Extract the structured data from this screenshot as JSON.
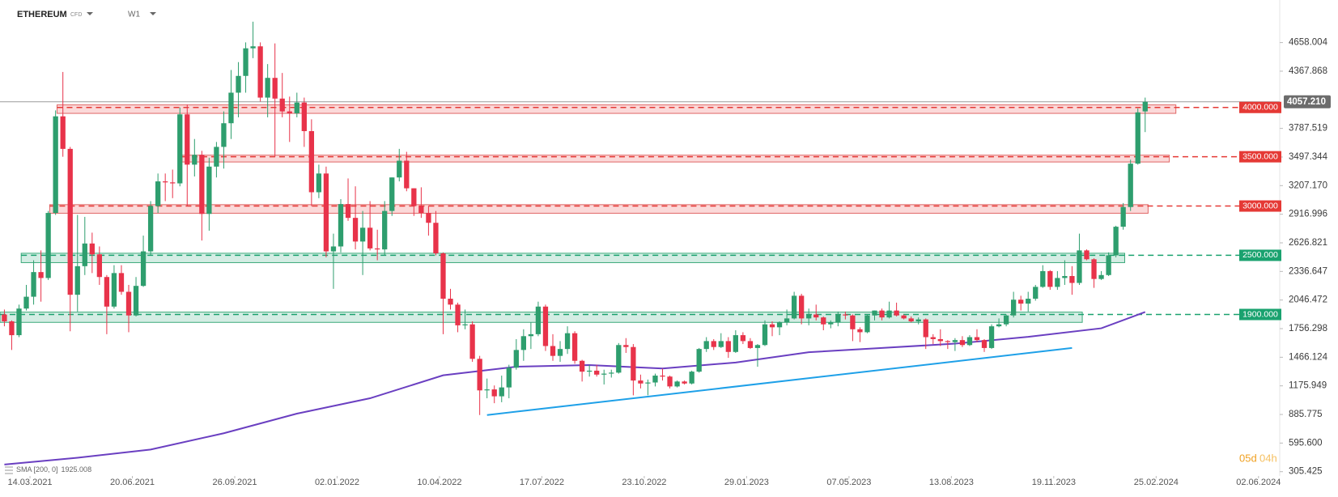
{
  "header": {
    "symbol": "ETHEREUM",
    "type": "CFD",
    "interval": "W1"
  },
  "timer": {
    "days": "05d",
    "hours": "04h"
  },
  "chart_data": {
    "type": "candlestick",
    "ylim": [
      262,
      5090
    ],
    "xlim": [
      -0.6,
      174.4
    ],
    "yticks": [
      4658.004,
      4367.868,
      3787.519,
      3497.344,
      {
        "value": 3207.17,
        "label": "3207.170"
      },
      2916.996,
      2626.821,
      2336.647,
      2046.472,
      1756.298,
      1466.124,
      1175.949,
      885.775,
      {
        "value": 595.6,
        "label": "595.600"
      },
      305.425
    ],
    "xticks": [
      {
        "value": 3.5,
        "label": "14.03.2021"
      },
      {
        "value": 17.5,
        "label": "20.06.2021"
      },
      {
        "value": 31.5,
        "label": "26.09.2021"
      },
      {
        "value": 45.5,
        "label": "02.01.2022"
      },
      {
        "value": 59.5,
        "label": "10.04.2022"
      },
      {
        "value": 73.5,
        "label": "17.07.2022"
      },
      {
        "value": 87.5,
        "label": "23.10.2022"
      },
      {
        "value": 101.5,
        "label": "29.01.2023"
      },
      {
        "value": 115.5,
        "label": "07.05.2023"
      },
      {
        "value": 129.5,
        "label": "13.08.2023"
      },
      {
        "value": 143.5,
        "label": "19.11.2023"
      },
      {
        "value": 157.5,
        "label": "25.02.2024"
      },
      {
        "value": 171.5,
        "label": "02.06.2024"
      }
    ],
    "up_color": "#2e9e6e",
    "down_color": "#e8334a",
    "last_price": {
      "value": 4057.21,
      "label": "4057.210"
    },
    "levels": [
      {
        "value": 4000,
        "label": "4000.000",
        "color": "#e53935",
        "zone": [
          3940,
          4026
        ],
        "start": 7.2,
        "end": 160.2
      },
      {
        "value": 3500,
        "label": "3500.000",
        "color": "#e53935",
        "zone": [
          3447,
          3516
        ],
        "start": 24.3,
        "end": 159.3
      },
      {
        "value": 3000,
        "label": "3000.000",
        "color": "#e53935",
        "zone": [
          2927,
          3014
        ],
        "start": 6.2,
        "end": 156.4
      },
      {
        "value": 2500,
        "label": "2500.000",
        "color": "#1aa26f",
        "zone": [
          2426,
          2521
        ],
        "start": 2.3,
        "end": 153.2
      },
      {
        "value": 1900,
        "label": "1900.000",
        "color": "#1aa26f",
        "zone": [
          1820,
          1924
        ],
        "start": -0.6,
        "end": 147.4
      }
    ],
    "sma": {
      "label": "SMA [200, 0]",
      "value": 1925.008,
      "color": "#6a3fc1",
      "x": [
        0,
        10,
        20,
        30,
        40,
        50,
        60,
        70,
        80,
        90,
        100,
        110,
        120,
        130,
        140,
        150,
        156
      ],
      "values": [
        378,
        447,
        530,
        695,
        894,
        1050,
        1283,
        1370,
        1387,
        1352,
        1413,
        1517,
        1560,
        1604,
        1673,
        1760,
        1925.008
      ]
    },
    "trendline": {
      "color": "#1ea0e8",
      "x": [
        66,
        146
      ],
      "values": [
        880,
        1560
      ]
    },
    "candles": [
      [
        1900,
        1950,
        1780,
        1830
      ],
      [
        1830,
        1840,
        1540,
        1690
      ],
      [
        1690,
        2000,
        1670,
        1960
      ],
      [
        1960,
        2200,
        1940,
        2080
      ],
      [
        2080,
        2450,
        2000,
        2330
      ],
      [
        2330,
        2550,
        2030,
        2270
      ],
      [
        2270,
        2950,
        2250,
        2930
      ],
      [
        2930,
        3970,
        2910,
        3910
      ],
      [
        3910,
        4360,
        3500,
        3580
      ],
      [
        3580,
        3600,
        1730,
        2100
      ],
      [
        2100,
        2910,
        1930,
        2390
      ],
      [
        2390,
        2890,
        2300,
        2620
      ],
      [
        2620,
        2730,
        2320,
        2510
      ],
      [
        2510,
        2590,
        2200,
        2280
      ],
      [
        2280,
        2300,
        1700,
        1980
      ],
      [
        1980,
        2400,
        1960,
        2320
      ],
      [
        2320,
        2400,
        2100,
        2130
      ],
      [
        2130,
        2200,
        1720,
        1890
      ],
      [
        1890,
        2280,
        1880,
        2190
      ],
      [
        2190,
        2700,
        2180,
        2540
      ],
      [
        2540,
        3050,
        2500,
        3000
      ],
      [
        3000,
        3330,
        2930,
        3250
      ],
      [
        3250,
        3330,
        3050,
        3240
      ],
      [
        3240,
        3370,
        3080,
        3230
      ],
      [
        3230,
        4000,
        3200,
        3930
      ],
      [
        3930,
        4030,
        3000,
        3420
      ],
      [
        3420,
        3680,
        3300,
        3520
      ],
      [
        3520,
        3560,
        2650,
        2920
      ],
      [
        2920,
        3490,
        2750,
        3400
      ],
      [
        3400,
        3650,
        3290,
        3600
      ],
      [
        3600,
        3960,
        3380,
        3840
      ],
      [
        3840,
        4380,
        3680,
        4150
      ],
      [
        4150,
        4460,
        3900,
        4320
      ],
      [
        4320,
        4660,
        4150,
        4600
      ],
      [
        4600,
        4870,
        4500,
        4620
      ],
      [
        4620,
        4660,
        4060,
        4100
      ],
      [
        4100,
        4440,
        3900,
        4300
      ],
      [
        4300,
        4650,
        3500,
        4090
      ],
      [
        4090,
        4350,
        3900,
        3960
      ],
      [
        3960,
        4110,
        3650,
        3940
      ],
      [
        3940,
        4150,
        3900,
        4050
      ],
      [
        4050,
        4100,
        3600,
        3760
      ],
      [
        3760,
        3880,
        3000,
        3140
      ],
      [
        3140,
        3420,
        3080,
        3330
      ],
      [
        3330,
        3400,
        2480,
        2540
      ],
      [
        2540,
        2720,
        2160,
        2590
      ],
      [
        2590,
        3070,
        2530,
        3020
      ],
      [
        3020,
        3280,
        2850,
        2880
      ],
      [
        2880,
        3200,
        2560,
        2640
      ],
      [
        2640,
        2950,
        2300,
        2780
      ],
      [
        2780,
        3050,
        2550,
        2570
      ],
      [
        2570,
        2760,
        2450,
        2560
      ],
      [
        2560,
        3050,
        2500,
        2950
      ],
      [
        2950,
        3290,
        2900,
        3290
      ],
      [
        3290,
        3580,
        3250,
        3460
      ],
      [
        3460,
        3550,
        3150,
        3180
      ],
      [
        3180,
        3180,
        2900,
        3000
      ],
      [
        3000,
        3190,
        2880,
        2930
      ],
      [
        2930,
        3000,
        2700,
        2830
      ],
      [
        2830,
        2950,
        2500,
        2520
      ],
      [
        2520,
        2530,
        1700,
        2060
      ],
      [
        2060,
        2160,
        1950,
        2000
      ],
      [
        2000,
        2020,
        1720,
        1790
      ],
      [
        1790,
        1950,
        1750,
        1800
      ],
      [
        1800,
        1830,
        1420,
        1450
      ],
      [
        1450,
        1480,
        880,
        1130
      ],
      [
        1130,
        1250,
        1050,
        1140
      ],
      [
        1140,
        1180,
        1000,
        1070
      ],
      [
        1070,
        1280,
        1010,
        1160
      ],
      [
        1160,
        1390,
        1050,
        1360
      ],
      [
        1360,
        1650,
        1340,
        1540
      ],
      [
        1540,
        1750,
        1430,
        1680
      ],
      [
        1680,
        1820,
        1550,
        1700
      ],
      [
        1700,
        2030,
        1680,
        1980
      ],
      [
        1980,
        2000,
        1530,
        1580
      ],
      [
        1580,
        1700,
        1430,
        1480
      ],
      [
        1480,
        1630,
        1420,
        1550
      ],
      [
        1550,
        1780,
        1500,
        1710
      ],
      [
        1710,
        1730,
        1400,
        1430
      ],
      [
        1430,
        1440,
        1220,
        1320
      ],
      [
        1320,
        1390,
        1270,
        1330
      ],
      [
        1330,
        1390,
        1270,
        1290
      ],
      [
        1290,
        1340,
        1190,
        1300
      ],
      [
        1300,
        1340,
        1260,
        1310
      ],
      [
        1310,
        1610,
        1300,
        1590
      ],
      [
        1590,
        1660,
        1510,
        1570
      ],
      [
        1570,
        1600,
        1080,
        1230
      ],
      [
        1230,
        1290,
        1150,
        1200
      ],
      [
        1200,
        1240,
        1080,
        1210
      ],
      [
        1210,
        1300,
        1170,
        1280
      ],
      [
        1280,
        1350,
        1230,
        1270
      ],
      [
        1270,
        1280,
        1150,
        1170
      ],
      [
        1170,
        1230,
        1160,
        1220
      ],
      [
        1220,
        1230,
        1190,
        1200
      ],
      [
        1200,
        1330,
        1190,
        1320
      ],
      [
        1320,
        1560,
        1310,
        1550
      ],
      [
        1550,
        1670,
        1520,
        1630
      ],
      [
        1630,
        1650,
        1540,
        1570
      ],
      [
        1570,
        1710,
        1560,
        1630
      ],
      [
        1630,
        1670,
        1460,
        1520
      ],
      [
        1520,
        1740,
        1510,
        1690
      ],
      [
        1690,
        1720,
        1600,
        1630
      ],
      [
        1630,
        1660,
        1550,
        1560
      ],
      [
        1560,
        1600,
        1370,
        1590
      ],
      [
        1590,
        1840,
        1580,
        1800
      ],
      [
        1800,
        1830,
        1680,
        1770
      ],
      [
        1770,
        1830,
        1690,
        1820
      ],
      [
        1820,
        1950,
        1790,
        1860
      ],
      [
        1860,
        2130,
        1850,
        2090
      ],
      [
        2090,
        2110,
        1800,
        1860
      ],
      [
        1860,
        1960,
        1790,
        1900
      ],
      [
        1900,
        2000,
        1840,
        1870
      ],
      [
        1870,
        1880,
        1740,
        1800
      ],
      [
        1800,
        1840,
        1760,
        1820
      ],
      [
        1820,
        1930,
        1780,
        1900
      ],
      [
        1900,
        1930,
        1850,
        1890
      ],
      [
        1890,
        1900,
        1630,
        1750
      ],
      [
        1750,
        1770,
        1620,
        1720
      ],
      [
        1720,
        1900,
        1710,
        1890
      ],
      [
        1890,
        1940,
        1840,
        1940
      ],
      [
        1940,
        1960,
        1840,
        1870
      ],
      [
        1870,
        2030,
        1860,
        1940
      ],
      [
        1940,
        2020,
        1880,
        1890
      ],
      [
        1890,
        1900,
        1850,
        1860
      ],
      [
        1860,
        1880,
        1820,
        1830
      ],
      [
        1830,
        1870,
        1800,
        1850
      ],
      [
        1850,
        1860,
        1550,
        1670
      ],
      [
        1670,
        1700,
        1600,
        1650
      ],
      [
        1650,
        1750,
        1580,
        1630
      ],
      [
        1630,
        1640,
        1550,
        1620
      ],
      [
        1620,
        1660,
        1530,
        1640
      ],
      [
        1640,
        1680,
        1570,
        1590
      ],
      [
        1590,
        1690,
        1580,
        1670
      ],
      [
        1670,
        1750,
        1620,
        1640
      ],
      [
        1640,
        1650,
        1520,
        1560
      ],
      [
        1560,
        1800,
        1550,
        1780
      ],
      [
        1780,
        1860,
        1770,
        1800
      ],
      [
        1800,
        1900,
        1780,
        1890
      ],
      [
        1890,
        2130,
        1870,
        2050
      ],
      [
        2050,
        2090,
        1940,
        2010
      ],
      [
        2010,
        2130,
        1930,
        2060
      ],
      [
        2060,
        2200,
        2040,
        2180
      ],
      [
        2180,
        2400,
        2170,
        2340
      ],
      [
        2340,
        2350,
        2150,
        2180
      ],
      [
        2180,
        2340,
        2150,
        2270
      ],
      [
        2270,
        2450,
        2200,
        2290
      ],
      [
        2290,
        2390,
        2100,
        2220
      ],
      [
        2220,
        2720,
        2200,
        2550
      ],
      [
        2550,
        2560,
        2450,
        2460
      ],
      [
        2460,
        2470,
        2170,
        2260
      ],
      [
        2260,
        2340,
        2250,
        2300
      ],
      [
        2300,
        2530,
        2290,
        2500
      ],
      [
        2500,
        2800,
        2480,
        2790
      ],
      [
        2790,
        3030,
        2760,
        2990
      ],
      [
        2990,
        3470,
        2950,
        3430
      ],
      [
        3430,
        3990,
        3420,
        3950
      ],
      [
        3960,
        4100,
        3750,
        4057.21
      ]
    ]
  }
}
